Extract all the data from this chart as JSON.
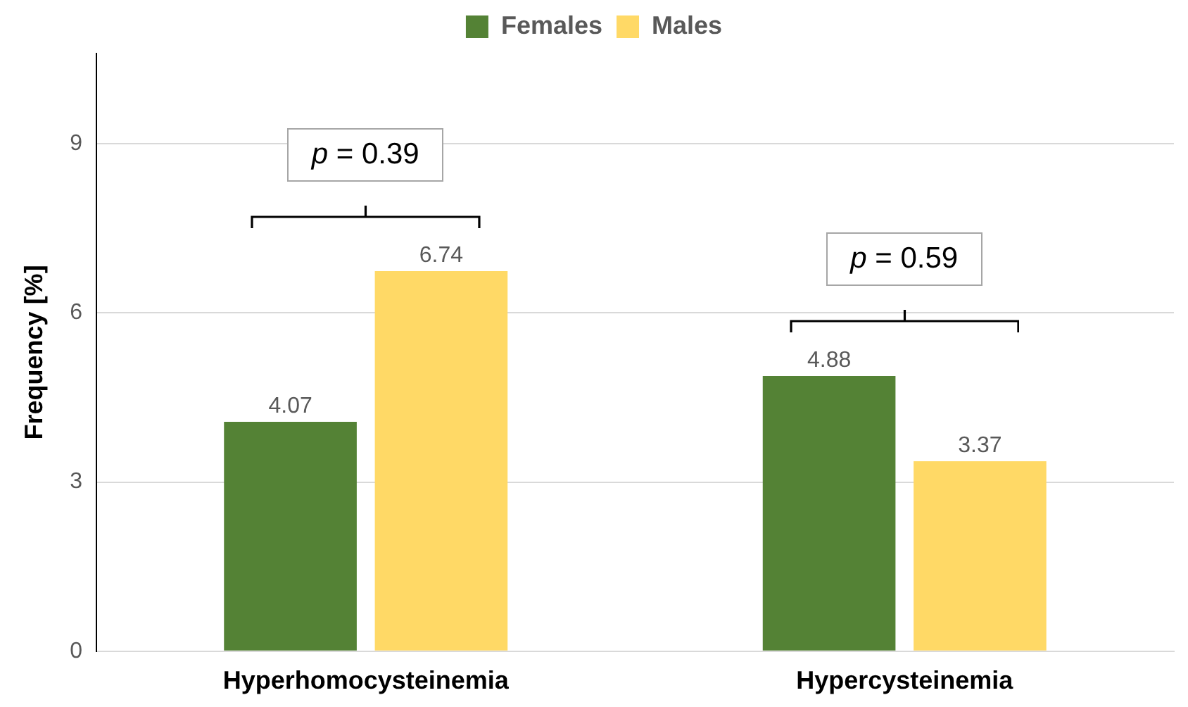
{
  "chart_data": {
    "type": "bar",
    "ylabel": "Frequency [%]",
    "categories": [
      "Hyperhomocysteinemia",
      "Hypercysteinemia"
    ],
    "series": [
      {
        "name": "Females",
        "color": "#548235",
        "values": [
          4.07,
          4.88
        ]
      },
      {
        "name": "Males",
        "color": "#ffd966",
        "values": [
          6.74,
          3.37
        ]
      }
    ],
    "ylim": [
      0,
      10.6
    ],
    "yticks": [
      0,
      3,
      6,
      9
    ],
    "grid": "y",
    "legend": "top",
    "data_labels": true,
    "annotations": [
      "p = 0.39",
      "p = 0.59"
    ]
  }
}
